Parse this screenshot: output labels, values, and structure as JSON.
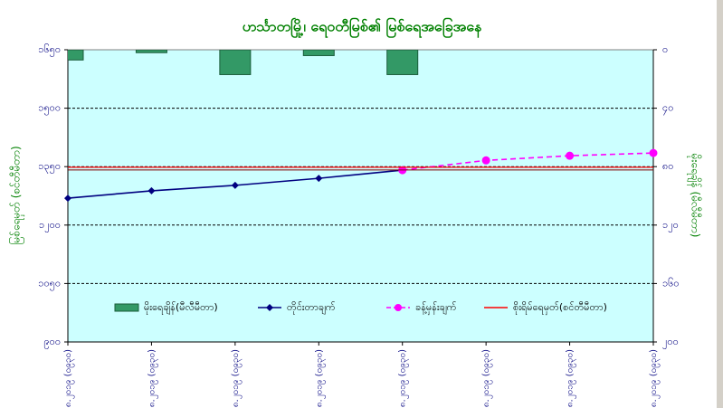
{
  "chart_data": {
    "type": "combo",
    "title": "ဟင်္သာတမြို့၊ ရေဝတီမြစ်၏ မြစ်ရေအခြေအနေ",
    "y_label": "မြစ်ရေမှတ် (စင်တီမီတာ)",
    "y2_label": "မိုးရေချိန် (မီလီမီတာ)",
    "categories": [
      "၂၃.၈.၂၀၁၉ (၀၉၃၀)",
      "၂၄.၈.၂၀၁၉ (၀၉၃၀)",
      "၂၅.၈.၂၀၁၉ (၀၉၃၀)",
      "၂၆.၈.၂၀၁၉ (၀၉၃၀)",
      "၂၇.၈.၂၀၁၉ (၀၉၃၀)",
      "၂၈.၈.၂၀၁၉ (၀၉၃၀)",
      "၂၉.၈.၂၀၁၉ (၀၉၃၀)",
      "၃၀.၈.၂၀၁၉ (၀၉၃၀)"
    ],
    "series": [
      {
        "name": "မိုးရေချိန်(မီလီမီတာ)",
        "type": "bar",
        "axis": "y2",
        "color": "#339966",
        "values": [
          7,
          2,
          17,
          4,
          17,
          null,
          null,
          null
        ]
      },
      {
        "name": "တိုင်းတာချက်",
        "type": "line",
        "color": "#000080",
        "marker": "diamond",
        "values": [
          1269,
          1288,
          1302,
          1320,
          1341,
          null,
          null,
          null
        ]
      },
      {
        "name": "ခန့်မှန်းချက်",
        "type": "line",
        "color": "#ff00ff",
        "marker": "circle",
        "dashed": true,
        "values": [
          null,
          null,
          null,
          null,
          1341,
          1366,
          1378,
          1385
        ]
      }
    ],
    "reference_lines": [
      {
        "name": "စိုးရိမ်ရေမှတ်(စင်တီမီတာ)",
        "color": "#ff0000",
        "value": 1345
      }
    ],
    "ylim": [
      900,
      1650
    ],
    "yticks": [
      {
        "value": 900,
        "label": "၉၀၀"
      },
      {
        "value": 1050,
        "label": "၁၀၅၀"
      },
      {
        "value": 1200,
        "label": "၁၂၀၀"
      },
      {
        "value": 1350,
        "label": "၁၃၅၀"
      },
      {
        "value": 1500,
        "label": "၁၅၀၀"
      },
      {
        "value": 1650,
        "label": "၁၆၅၀"
      }
    ],
    "y2lim": [
      0,
      200
    ],
    "y2_reversed": true,
    "y2ticks": [
      {
        "value": 0,
        "label": "၀"
      },
      {
        "value": 40,
        "label": "၄၀"
      },
      {
        "value": 80,
        "label": "၈၀"
      },
      {
        "value": 120,
        "label": "၁၂၀"
      },
      {
        "value": 160,
        "label": "၁၆၀"
      },
      {
        "value": 200,
        "label": "၂၀၀"
      }
    ],
    "grid": true,
    "plot_background": "#ccffff"
  }
}
